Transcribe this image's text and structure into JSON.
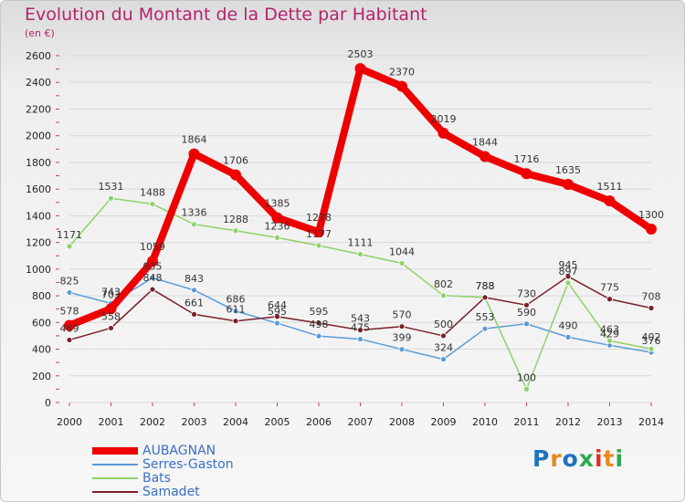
{
  "title": "Evolution du Montant de la Dette par Habitant",
  "subtitle": "(en €)",
  "logo": {
    "text": "Proxiti",
    "colors": [
      "#1e73be",
      "#e88a1a",
      "#1e73be",
      "#2fa84f",
      "#e0302a",
      "#e88a1a",
      "#2fa84f"
    ]
  },
  "chart_data": {
    "type": "line",
    "categories": [
      "2000",
      "2001",
      "2002",
      "2003",
      "2004",
      "2005",
      "2006",
      "2007",
      "2008",
      "2009",
      "2010",
      "2011",
      "2012",
      "2013",
      "2014"
    ],
    "ylim": [
      0,
      2600
    ],
    "yticks": [
      0,
      200,
      400,
      600,
      800,
      1000,
      1200,
      1400,
      1600,
      1800,
      2000,
      2200,
      2400,
      2600
    ],
    "grid": "horizontal",
    "legend": "bottom-left",
    "series": [
      {
        "name": "Serres-Gaston",
        "color": "#5b9bd5",
        "values": [
          825,
          743,
          935,
          843,
          686,
          595,
          498,
          475,
          399,
          324,
          553,
          590,
          490,
          429,
          376
        ]
      },
      {
        "name": "Bats",
        "color": "#8ed16b",
        "values": [
          1171,
          1531,
          1488,
          1336,
          1288,
          1236,
          1177,
          1111,
          1044,
          802,
          788,
          100,
          897,
          463,
          402
        ]
      },
      {
        "name": "Samadet",
        "color": "#7b1f2a",
        "values": [
          469,
          558,
          848,
          661,
          611,
          644,
          595,
          543,
          570,
          500,
          788,
          730,
          945,
          775,
          708
        ]
      },
      {
        "name": "AUBAGNAN",
        "color": "#ee0000",
        "values": [
          578,
          703,
          1059,
          1864,
          1706,
          1385,
          1278,
          2503,
          2370,
          2019,
          1844,
          1716,
          1635,
          1511,
          1300
        ]
      }
    ],
    "legend_order": [
      "AUBAGNAN",
      "Serres-Gaston",
      "Bats",
      "Samadet"
    ]
  }
}
